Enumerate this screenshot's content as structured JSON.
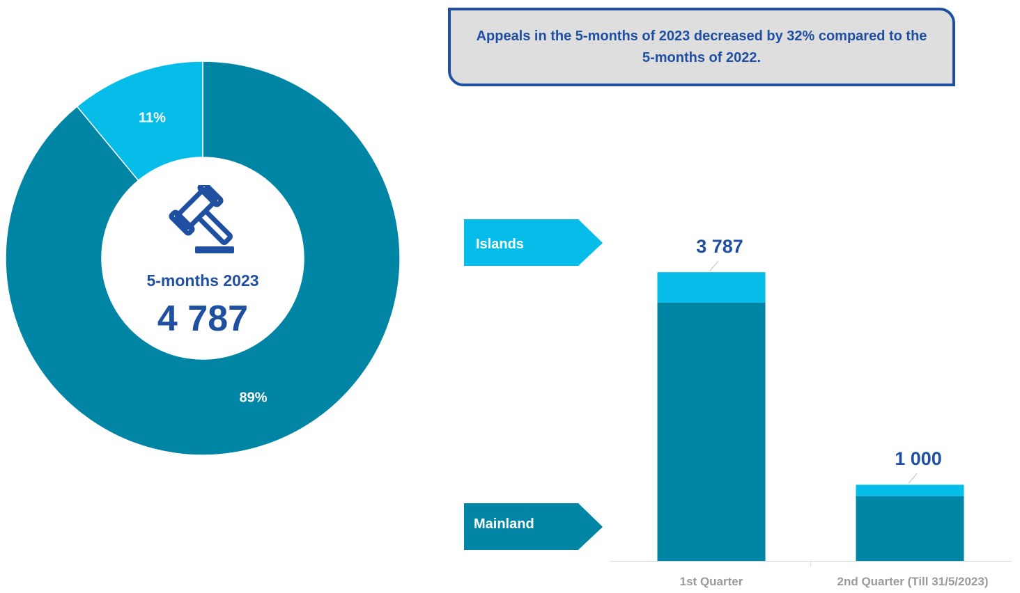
{
  "callout": {
    "text": "Appeals in the 5-months of 2023 decreased by 32% compared to the 5-months of 2022."
  },
  "colors": {
    "mainland": "#0085a5",
    "islands": "#05bde8",
    "accent_text": "#1f4fa0",
    "callout_bg": "#dedede"
  },
  "donut": {
    "center_title": "5-months 2023",
    "center_total": "4 787",
    "center_icon": "gavel-icon"
  },
  "legend": {
    "islands_label": "Islands",
    "mainland_label": "Mainland"
  },
  "chart_data": [
    {
      "type": "pie",
      "variant": "donut",
      "slices": [
        {
          "name": "Mainland",
          "value": 89,
          "label": "89%",
          "color": "#0085a5"
        },
        {
          "name": "Islands",
          "value": 11,
          "label": "11%",
          "color": "#05bde8"
        }
      ],
      "title": "5-months 2023",
      "total": "4 787"
    },
    {
      "type": "bar",
      "stacked": true,
      "categories": [
        "1st Quarter",
        "2nd Quarter (Till 31/5/2023)"
      ],
      "series": [
        {
          "name": "Mainland",
          "values": [
            3390,
            850
          ],
          "color": "#0085a5"
        },
        {
          "name": "Islands",
          "values": [
            397,
            150
          ],
          "color": "#05bde8"
        }
      ],
      "totals": [
        3787,
        1000
      ],
      "total_labels": [
        "3 787",
        "1 000"
      ],
      "ylim": [
        0,
        4400
      ],
      "grid": false,
      "legend": "left"
    }
  ]
}
